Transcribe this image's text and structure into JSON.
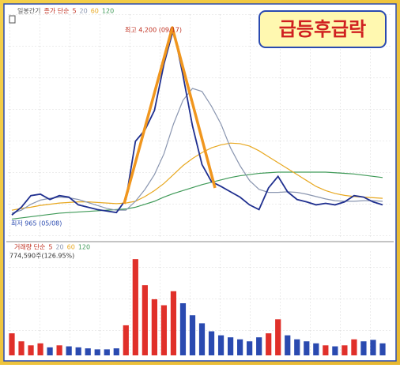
{
  "title": "급등후급락",
  "chart_data": {
    "type": "line",
    "price_legend": [
      "일봉간기",
      "종가 단순",
      "5",
      "20",
      "60",
      "120"
    ],
    "volume_legend": [
      "거래량 단순",
      "5",
      "20",
      "60",
      "120"
    ],
    "high_label": "최고 4,200 (09/17)",
    "low_label": "최저 965 (05/08)",
    "volume_label": "774,590주(126.95%)",
    "ylim": [
      700,
      4450
    ],
    "volume_ylim": [
      0,
      5200000
    ],
    "up_color": "#e0302a",
    "down_color": "#2a4ab0",
    "series": [
      {
        "color": "#1f2f8f",
        "values": [
          1069,
          1200,
          1395,
          1420,
          1330,
          1395,
          1370,
          1240,
          1200,
          1160,
          1135,
          1110,
          1330,
          2310,
          2500,
          2830,
          3610,
          4200,
          3420,
          2570,
          1920,
          1630,
          1550,
          1460,
          1370,
          1240,
          1160,
          1525,
          1720,
          1460,
          1330,
          1290,
          1240,
          1265,
          1240,
          1290,
          1395,
          1370,
          1290,
          1240
        ]
      },
      {
        "name": "20",
        "color": "#8a96b0",
        "values": [
          1100,
          1150,
          1250,
          1320,
          1350,
          1370,
          1360,
          1330,
          1280,
          1230,
          1180,
          1150,
          1150,
          1300,
          1500,
          1750,
          2100,
          2600,
          3000,
          3200,
          3150,
          2900,
          2600,
          2200,
          1900,
          1650,
          1500,
          1450,
          1450,
          1460,
          1450,
          1420,
          1380,
          1340,
          1310,
          1300,
          1300,
          1310,
          1310,
          1300
        ]
      },
      {
        "name": "60",
        "color": "#e8a820",
        "values": [
          1150,
          1180,
          1200,
          1230,
          1250,
          1270,
          1280,
          1290,
          1290,
          1280,
          1270,
          1260,
          1270,
          1300,
          1380,
          1480,
          1600,
          1750,
          1900,
          2020,
          2120,
          2200,
          2250,
          2280,
          2270,
          2230,
          2150,
          2050,
          1950,
          1850,
          1750,
          1650,
          1550,
          1480,
          1430,
          1400,
          1380,
          1370,
          1360,
          1350
        ]
      },
      {
        "name": "120",
        "color": "#3f9a58",
        "values": [
          1000,
          1020,
          1040,
          1060,
          1080,
          1100,
          1110,
          1120,
          1130,
          1140,
          1150,
          1160,
          1170,
          1200,
          1250,
          1300,
          1370,
          1430,
          1480,
          1530,
          1580,
          1620,
          1660,
          1700,
          1730,
          1750,
          1770,
          1780,
          1790,
          1790,
          1790,
          1790,
          1790,
          1790,
          1780,
          1770,
          1760,
          1740,
          1720,
          1700
        ]
      }
    ],
    "volume": [
      1100000,
      700000,
      500000,
      600000,
      400000,
      500000,
      450000,
      400000,
      350000,
      300000,
      300000,
      350000,
      1500000,
      4800000,
      3500000,
      2800000,
      2500000,
      3200000,
      2600000,
      2000000,
      1600000,
      1200000,
      1000000,
      900000,
      800000,
      700000,
      900000,
      1100000,
      1800000,
      1000000,
      800000,
      700000,
      600000,
      500000,
      450000,
      500000,
      800000,
      700000,
      774590,
      600000
    ]
  }
}
